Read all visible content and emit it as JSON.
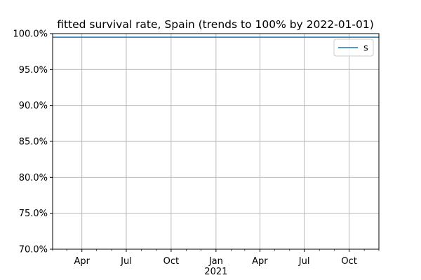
{
  "chart_data": {
    "type": "line",
    "title": "fitted survival rate, Spain (trends to 100% by 2022-01-01)",
    "xlabel": "",
    "ylabel": "",
    "x_range": [
      "2020-02-01",
      "2021-12-01"
    ],
    "ylim": [
      70.0,
      100.0
    ],
    "y_ticks": [
      70.0,
      75.0,
      80.0,
      85.0,
      90.0,
      95.0,
      100.0
    ],
    "y_tick_labels": [
      "70.0%",
      "75.0%",
      "80.0%",
      "85.0%",
      "90.0%",
      "95.0%",
      "100.0%"
    ],
    "x_ticks": [
      "2020-04-01",
      "2020-07-01",
      "2020-10-01",
      "2021-01-01",
      "2021-04-01",
      "2021-07-01",
      "2021-10-01"
    ],
    "x_tick_labels": [
      "Apr",
      "Jul",
      "Oct",
      "Jan",
      "Apr",
      "Jul",
      "Oct"
    ],
    "x_year_labels": [
      {
        "date": "2021-01-01",
        "label": "2021"
      }
    ],
    "grid": true,
    "legend_position": "upper right",
    "series": [
      {
        "name": "s",
        "color": "#1f77b4",
        "x": [
          "2020-02-01",
          "2021-12-01"
        ],
        "values": [
          99.5,
          99.5
        ]
      }
    ]
  }
}
